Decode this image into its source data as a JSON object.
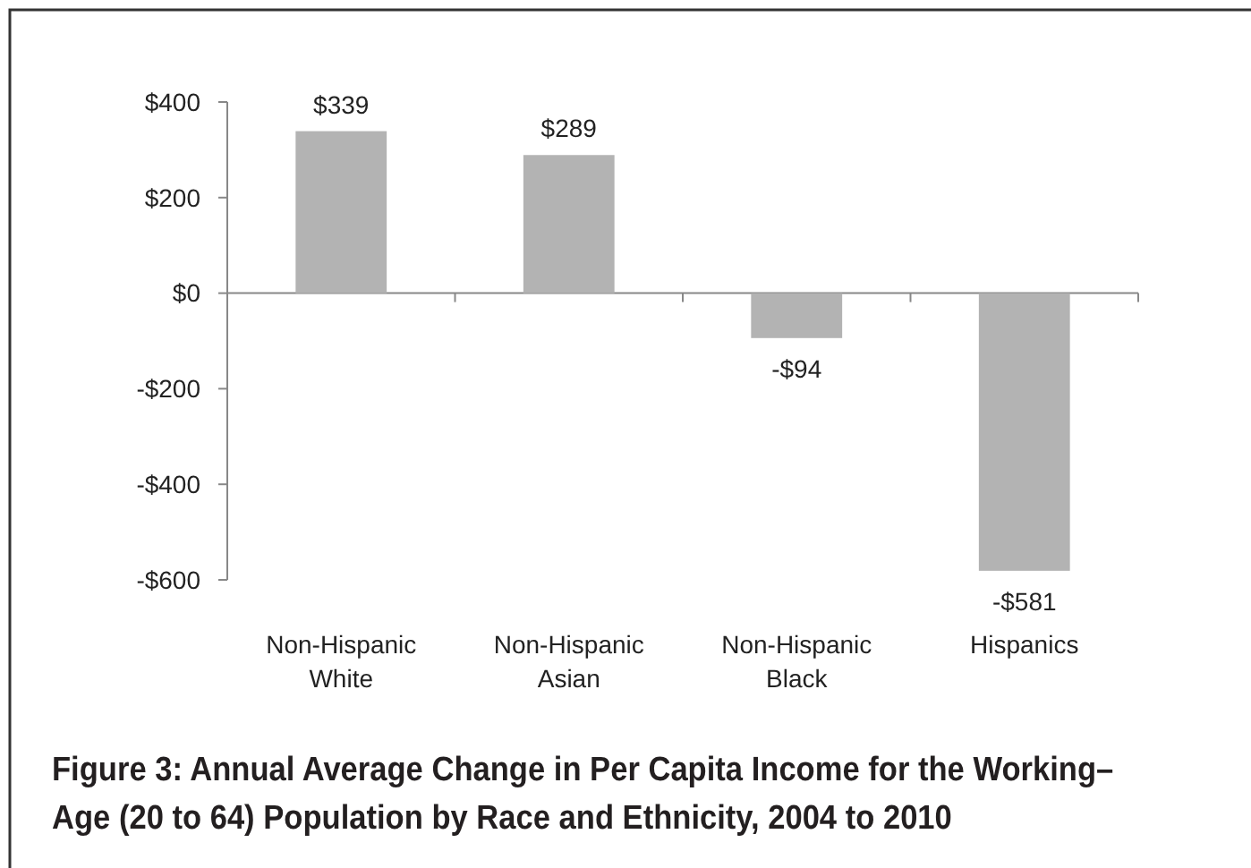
{
  "chart_data": {
    "type": "bar",
    "title": "Figure 3: Annual Average Change in Per Capita Income for the Working–Age (20 to 64) Population by Race and Ethnicity, 2004 to 2010",
    "categories": [
      "Non-Hispanic White",
      "Non-Hispanic Asian",
      "Non-Hispanic Black",
      "Hispanics"
    ],
    "values": [
      339,
      289,
      -94,
      -581
    ],
    "value_labels": [
      "$339",
      "$289",
      "-$94",
      "-$581"
    ],
    "color": "#b3b3b3",
    "ylim": [
      -600,
      400
    ],
    "yticks": [
      {
        "value": -600,
        "label": "-$600"
      },
      {
        "value": -400,
        "label": "-$400"
      },
      {
        "value": -200,
        "label": "-$200"
      },
      {
        "value": 0,
        "label": "$0"
      },
      {
        "value": 200,
        "label": "$200"
      },
      {
        "value": 400,
        "label": "$400"
      }
    ]
  }
}
